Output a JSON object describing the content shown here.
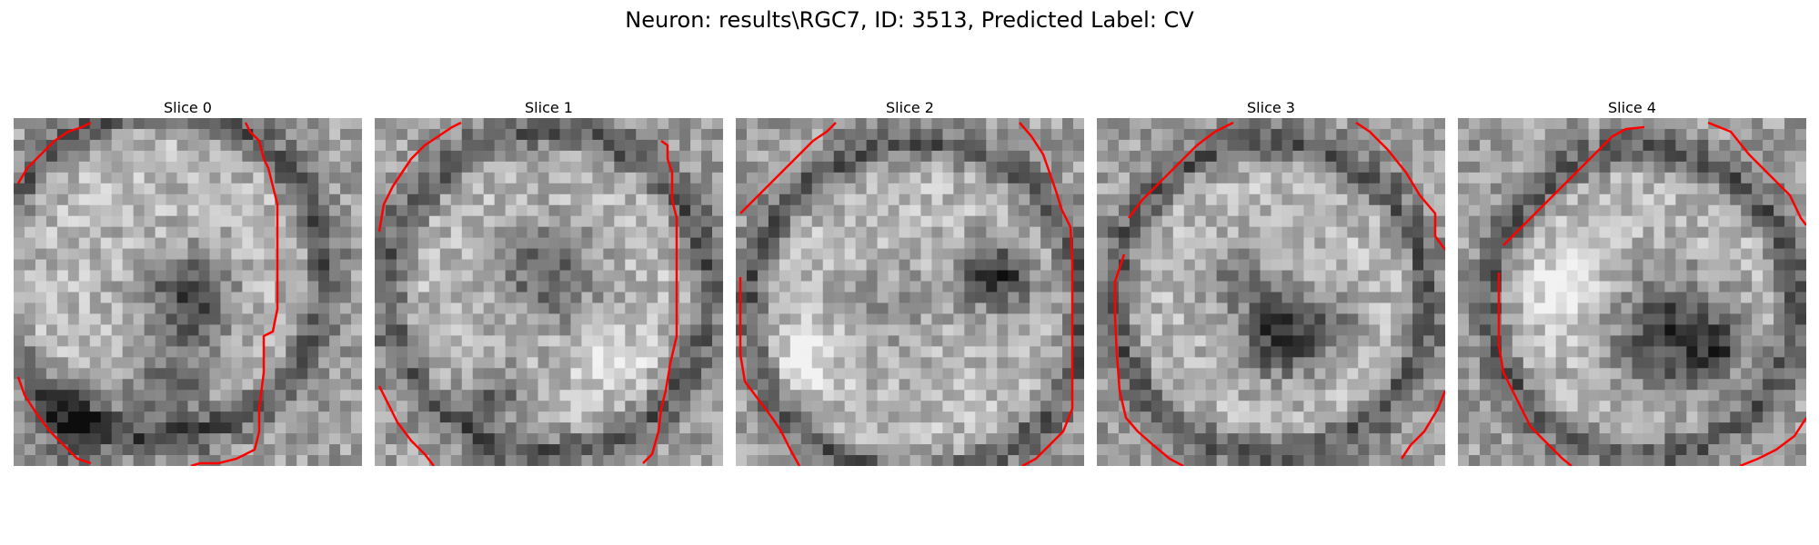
{
  "figure": {
    "title": "Neuron: results\\RGC7, ID: 3513, Predicted Label: CV"
  },
  "panels": [
    {
      "title": "Slice 0"
    },
    {
      "title": "Slice 1"
    },
    {
      "title": "Slice 2"
    },
    {
      "title": "Slice 3"
    },
    {
      "title": "Slice 4"
    }
  ],
  "colors": {
    "contour": "#ff0000",
    "image_dark": "#111111",
    "image_light": "#f2f2f2"
  }
}
